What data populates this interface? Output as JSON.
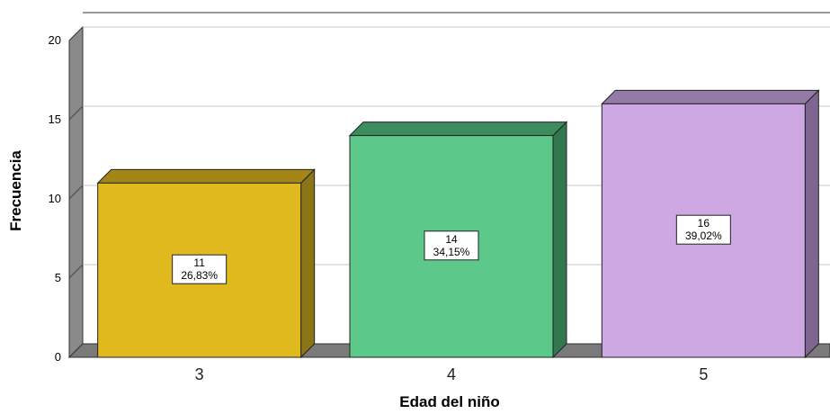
{
  "chart_data": {
    "type": "bar",
    "title": "",
    "xlabel": "Edad del niño",
    "ylabel": "Frecuencia",
    "categories": [
      "3",
      "4",
      "5"
    ],
    "values": [
      11,
      14,
      16
    ],
    "percent_labels": [
      "26,83%",
      "34,15%",
      "39,02%"
    ],
    "ylim": [
      0,
      20
    ],
    "yticks": [
      0,
      5,
      10,
      15,
      20
    ],
    "grid": true,
    "legend": "none",
    "colors": {
      "bars": [
        "#E0B91E",
        "#5CC98A",
        "#CDA8E3"
      ],
      "bar_sides": [
        "#8C7514",
        "#33774F",
        "#7E6690"
      ],
      "bar_tops": [
        "#A48616",
        "#3D8C5D",
        "#947AA6"
      ],
      "floor": "#7A7A7A",
      "wall": "#8A8A8A",
      "gridline": "#C8C8C8"
    }
  }
}
